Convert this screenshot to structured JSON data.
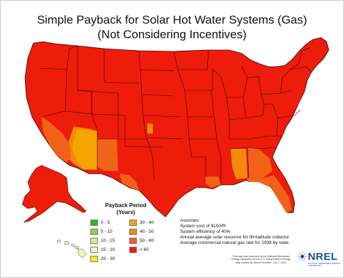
{
  "title": {
    "line1": "Simple Payback for Solar Hot Water Systems (Gas)",
    "line2": "(Not Considering Incentives)"
  },
  "legend": {
    "title_line1": "Payback Period",
    "title_line2": "(Years)",
    "items": [
      {
        "label": "0 - 5",
        "color": "#2eb82e"
      },
      {
        "label": "5 - 10",
        "color": "#8fd14f"
      },
      {
        "label": "10 - 15",
        "color": "#cfef9a"
      },
      {
        "label": "15 - 20",
        "color": "#f2f7b8"
      },
      {
        "label": "20 - 30",
        "color": "#f7f01a"
      },
      {
        "label": "30 - 40",
        "color": "#f5a500"
      },
      {
        "label": "40 - 50",
        "color": "#f48a0c"
      },
      {
        "label": "50 - 60",
        "color": "#f26218"
      },
      {
        "label": "> 60",
        "color": "#ee1c0b"
      }
    ]
  },
  "assumptions": {
    "heading": "Assumes:",
    "lines": [
      "System cost of $150/ft²",
      "System efficiency of 40%",
      "Annual average solar resource for tilt=latitude collector",
      "Average commercial natural gas rate for 2008 by state"
    ]
  },
  "credit": {
    "line1": "This map was produced by the National Renewable",
    "line2": "Energy Laboratory for the U.S. Department of Energy",
    "line3": "Map created by Donna Heimiller - Oct 7, 2010"
  },
  "logo": {
    "text": "NREL",
    "subtext": "NATIONAL RENEWABLE ENERGY LABORATORY"
  },
  "colors": {
    "over_60": "#ee1c0b",
    "50_60": "#f26218",
    "40_50": "#f48a0c",
    "30_40": "#f5a500",
    "15_20": "#f2f7b8",
    "state_border": "#3a0000"
  }
}
